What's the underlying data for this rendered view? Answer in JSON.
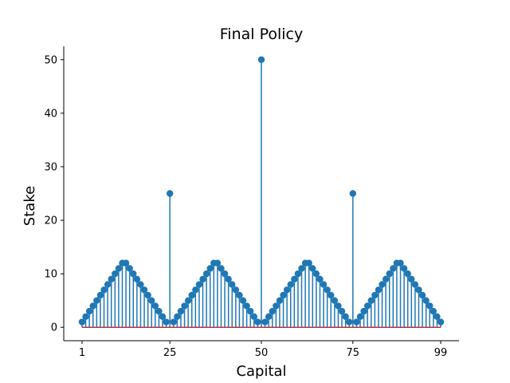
{
  "chart_data": {
    "type": "stem",
    "title": "Final Policy",
    "xlabel": "Capital",
    "ylabel": "Stake",
    "xticks": [
      1,
      25,
      50,
      75,
      99
    ],
    "yticks": [
      0,
      10,
      20,
      30,
      40,
      50
    ],
    "xlim": [
      -4,
      104
    ],
    "ylim": [
      -2.5,
      52.5
    ],
    "grid": false,
    "legend": "none",
    "colors": {
      "stem": "#1f77b4",
      "baseline": "#d62728",
      "axis": "#000000"
    },
    "x": [
      1,
      2,
      3,
      4,
      5,
      6,
      7,
      8,
      9,
      10,
      11,
      12,
      13,
      14,
      15,
      16,
      17,
      18,
      19,
      20,
      21,
      22,
      23,
      24,
      25,
      26,
      27,
      28,
      29,
      30,
      31,
      32,
      33,
      34,
      35,
      36,
      37,
      38,
      39,
      40,
      41,
      42,
      43,
      44,
      45,
      46,
      47,
      48,
      49,
      50,
      51,
      52,
      53,
      54,
      55,
      56,
      57,
      58,
      59,
      60,
      61,
      62,
      63,
      64,
      65,
      66,
      67,
      68,
      69,
      70,
      71,
      72,
      73,
      74,
      75,
      76,
      77,
      78,
      79,
      80,
      81,
      82,
      83,
      84,
      85,
      86,
      87,
      88,
      89,
      90,
      91,
      92,
      93,
      94,
      95,
      96,
      97,
      98,
      99
    ],
    "y": [
      1,
      2,
      3,
      4,
      5,
      6,
      7,
      8,
      9,
      10,
      11,
      12,
      12,
      11,
      10,
      9,
      8,
      7,
      6,
      5,
      4,
      3,
      2,
      1,
      25,
      1,
      2,
      3,
      4,
      5,
      6,
      7,
      8,
      9,
      10,
      11,
      12,
      12,
      11,
      10,
      9,
      8,
      7,
      6,
      5,
      4,
      3,
      2,
      1,
      50,
      1,
      2,
      3,
      4,
      5,
      6,
      7,
      8,
      9,
      10,
      11,
      12,
      12,
      11,
      10,
      9,
      8,
      7,
      6,
      5,
      4,
      3,
      2,
      1,
      25,
      1,
      2,
      3,
      4,
      5,
      6,
      7,
      8,
      9,
      10,
      11,
      12,
      12,
      11,
      10,
      9,
      8,
      7,
      6,
      5,
      4,
      3,
      2,
      1
    ]
  }
}
